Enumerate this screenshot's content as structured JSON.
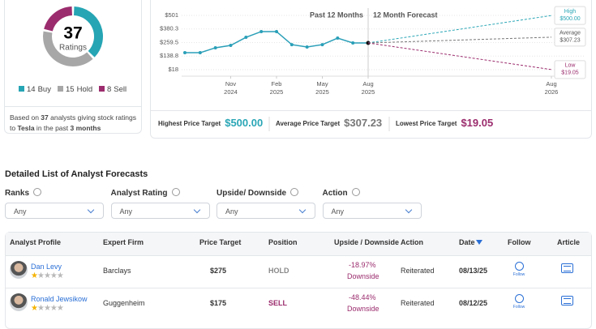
{
  "chart_data": [
    {
      "type": "donut",
      "total": 37,
      "center_label": "Ratings",
      "categories": [
        "Buy",
        "Hold",
        "Sell"
      ],
      "values": [
        14,
        15,
        8
      ],
      "colors": [
        "#26a5b4",
        "#a7a7a7",
        "#9b2c6d"
      ]
    },
    {
      "type": "line",
      "title": "Past 12 Months",
      "forecast_title": "12 Month Forecast",
      "x": [
        "2024-08",
        "2024-09",
        "2024-10",
        "2024-11",
        "2024-12",
        "2025-01",
        "2025-02",
        "2025-03",
        "2025-04",
        "2025-05",
        "2025-06",
        "2025-07",
        "2025-08"
      ],
      "series": [
        {
          "color": "#2a9fb8",
          "values": [
            169,
            169,
            213,
            234,
            306,
            357,
            357,
            241,
            220,
            241,
            299,
            256,
            256
          ]
        }
      ],
      "xlim": [
        "2024-08",
        "2026-08"
      ],
      "xticks": [
        {
          "value": "2024-11",
          "label": [
            "Nov",
            "2024"
          ]
        },
        {
          "value": "2025-02",
          "label": [
            "Feb",
            "2025"
          ]
        },
        {
          "value": "2025-05",
          "label": [
            "May",
            "2025"
          ]
        },
        {
          "value": "2025-08",
          "label": [
            "Aug",
            "2025"
          ]
        },
        {
          "value": "2026-08",
          "label": [
            "Aug",
            "2026"
          ]
        }
      ],
      "ylim": [
        18,
        501
      ],
      "yticks": [
        {
          "value": 501,
          "label": "$501"
        },
        {
          "value": 380.3,
          "label": "$380.3"
        },
        {
          "value": 259.5,
          "label": "$259.5"
        },
        {
          "value": 138.8,
          "label": "$138.8"
        },
        {
          "value": 18,
          "label": "$18"
        }
      ],
      "grid": true,
      "forecast": [
        {
          "label": "High",
          "summary_label": "Highest Price Target",
          "x": "2026-08",
          "value": 500,
          "value_label": "$500.00",
          "color": "#2aa6b6"
        },
        {
          "label": "Average",
          "summary_label": "Average Price Target",
          "x": "2026-08",
          "value": 307.23,
          "value_label": "$307.23",
          "color": "#777777"
        },
        {
          "label": "Low",
          "summary_label": "Lowest Price Target",
          "x": "2026-08",
          "value": 19.05,
          "value_label": "$19.05",
          "color": "#9b2c6d"
        }
      ]
    }
  ],
  "summary": {
    "parts": [
      "Based on ",
      "37",
      " analysts giving stock ratings to ",
      "Tesla",
      " in the past ",
      "3 months"
    ]
  },
  "section_title": "Detailed List of Analyst Forecasts",
  "filters": [
    {
      "label": "Ranks",
      "value": "Any"
    },
    {
      "label": "Analyst Rating",
      "value": "Any"
    },
    {
      "label": "Upside/ Downside",
      "value": "Any"
    },
    {
      "label": "Action",
      "value": "Any"
    }
  ],
  "table": {
    "headers": [
      "Analyst Profile",
      "Expert Firm",
      "Price Target",
      "Position",
      "Upside / Downside",
      "Action",
      "Date",
      "Follow",
      "Article"
    ],
    "rows": [
      {
        "analyst": "Dan Levy",
        "stars": 1,
        "firm": "Barclays",
        "price_target": "$275",
        "position": "HOLD",
        "upside": "-18.97%",
        "direction": "Downside",
        "action": "Reiterated",
        "date": "08/13/25",
        "follow": "Follow"
      },
      {
        "analyst": "Ronald Jewsikow",
        "stars": 1,
        "firm": "Guggenheim",
        "price_target": "$175",
        "position": "SELL",
        "upside": "-48.44%",
        "direction": "Downside",
        "action": "Reiterated",
        "date": "08/12/25",
        "follow": "Follow"
      }
    ]
  }
}
